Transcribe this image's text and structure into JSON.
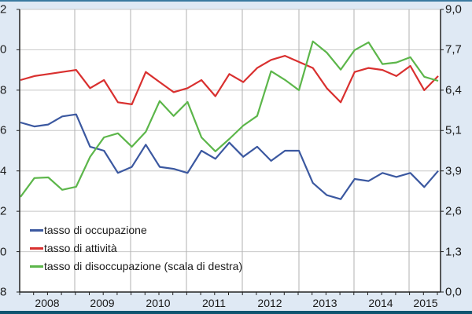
{
  "chart_data": {
    "type": "line",
    "title": "",
    "xlabel": "",
    "ylabel": "",
    "y2label": "",
    "x_tick_labels": [
      "2008",
      "2009",
      "2010",
      "2011",
      "2012",
      "2013",
      "2014",
      "2015"
    ],
    "x_quarters": [
      "2008Q1",
      "2008Q2",
      "2008Q3",
      "2008Q4",
      "2009Q1",
      "2009Q2",
      "2009Q3",
      "2009Q4",
      "2010Q1",
      "2010Q2",
      "2010Q3",
      "2010Q4",
      "2011Q1",
      "2011Q2",
      "2011Q3",
      "2011Q4",
      "2012Q1",
      "2012Q2",
      "2012Q3",
      "2012Q4",
      "2013Q1",
      "2013Q2",
      "2013Q3",
      "2013Q4",
      "2014Q1",
      "2014Q2",
      "2014Q3",
      "2014Q4",
      "2015Q1",
      "2015Q2",
      "2015Q3"
    ],
    "left_axis": {
      "tick_labels": [
        "2",
        "0",
        "8",
        "6",
        "4",
        "2",
        "0",
        "8"
      ],
      "ylim": [
        48,
        62
      ],
      "step": 2
    },
    "right_axis": {
      "tick_labels": [
        "9,0",
        "7,7",
        "6,4",
        "5,1",
        "3,9",
        "2,6",
        "1,3",
        "0,0"
      ],
      "ylim": [
        0,
        9.1
      ],
      "step": 1.3
    },
    "grid": true,
    "legend_position": "lower-left inside",
    "series": [
      {
        "name": "tasso di occupazione",
        "axis": "left",
        "color": "#3b58a0",
        "values": [
          56.4,
          56.2,
          56.3,
          56.7,
          56.8,
          55.2,
          55.0,
          53.9,
          54.2,
          55.3,
          54.2,
          54.1,
          53.9,
          55.0,
          54.6,
          55.4,
          54.7,
          55.2,
          54.5,
          55.0,
          55.0,
          53.4,
          52.8,
          52.6,
          53.6,
          53.5,
          53.9,
          53.7,
          53.9,
          53.2,
          54.0
        ]
      },
      {
        "name": "tasso di attività",
        "axis": "left",
        "color": "#d9302f",
        "values": [
          58.5,
          58.7,
          58.8,
          58.9,
          59.0,
          58.1,
          58.5,
          57.4,
          57.3,
          58.9,
          58.4,
          57.9,
          58.1,
          58.5,
          57.7,
          58.8,
          58.4,
          59.1,
          59.5,
          59.7,
          59.4,
          59.1,
          58.1,
          57.4,
          58.9,
          59.1,
          59.0,
          58.7,
          59.2,
          58.0,
          58.7
        ]
      },
      {
        "name": "tasso di disoccupazione (scala di destra)",
        "axis": "right",
        "color": "#5cb64a",
        "values": [
          3.06,
          3.67,
          3.69,
          3.29,
          3.39,
          4.35,
          4.98,
          5.11,
          4.68,
          5.16,
          6.15,
          5.67,
          6.12,
          4.98,
          4.53,
          4.93,
          5.36,
          5.67,
          7.11,
          6.83,
          6.5,
          8.07,
          7.71,
          7.16,
          7.79,
          8.04,
          7.34,
          7.39,
          7.56,
          6.93,
          6.8
        ]
      }
    ]
  },
  "legend": {
    "items": [
      {
        "label": "tasso di occupazione",
        "color": "#3b58a0"
      },
      {
        "label": "tasso di attività",
        "color": "#d9302f"
      },
      {
        "label": "tasso di disoccupazione (scala di destra)",
        "color": "#5cb64a"
      }
    ]
  }
}
